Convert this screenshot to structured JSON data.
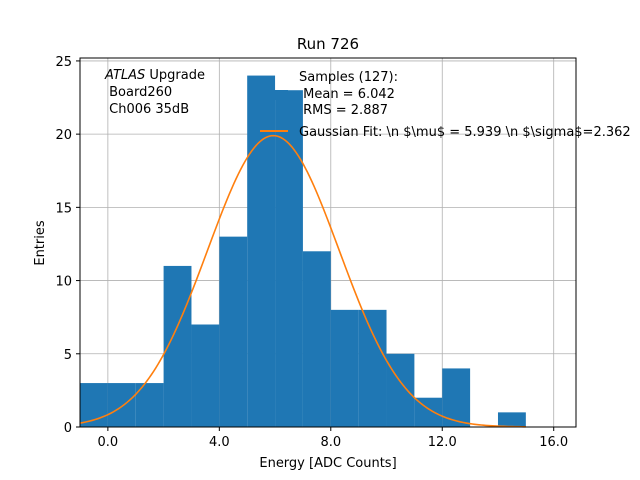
{
  "chart_data": {
    "type": "bar",
    "title": "Run 726",
    "xlabel": "Energy [ADC Counts]",
    "ylabel": "Entries",
    "xlim": [
      -1.0,
      16.8
    ],
    "ylim": [
      0,
      25.2
    ],
    "xticks": [
      0.0,
      4.0,
      8.0,
      12.0,
      16.0
    ],
    "xtick_labels": [
      "0.0",
      "4.0",
      "8.0",
      "12.0",
      "16.0"
    ],
    "yticks": [
      0,
      5,
      10,
      15,
      20,
      25
    ],
    "ytick_labels": [
      "0",
      "5",
      "10",
      "15",
      "20",
      "25"
    ],
    "grid": true,
    "bin_edges": [
      -1,
      0,
      1,
      2,
      3,
      4,
      5,
      6,
      7,
      8,
      9,
      10,
      11,
      12,
      13,
      14,
      15
    ],
    "values": [
      3,
      3,
      3,
      11,
      7,
      13,
      24,
      23,
      12,
      8,
      8,
      5,
      2,
      4,
      0,
      1
    ],
    "histogram_color": "#1f77b4",
    "fit": {
      "mu": 5.939,
      "sigma": 2.362,
      "peak": 19.9,
      "x_range": [
        -1.0,
        15.0
      ],
      "color": "#ff7f0e"
    },
    "annotation": {
      "italic_part": "ATLAS",
      "rest": " Upgrade",
      "line2": " Board260",
      "line3": " Ch006 35dB"
    },
    "legend": {
      "placement": "top-right",
      "hist_label_line1": "Samples (127):",
      "hist_label_line2": " Mean = 6.042",
      "hist_label_line3": " RMS = 2.887",
      "fit_label": "Gaussian Fit: \\n $\\mu$ = 5.939 \\n $\\sigma$=2.362"
    }
  }
}
